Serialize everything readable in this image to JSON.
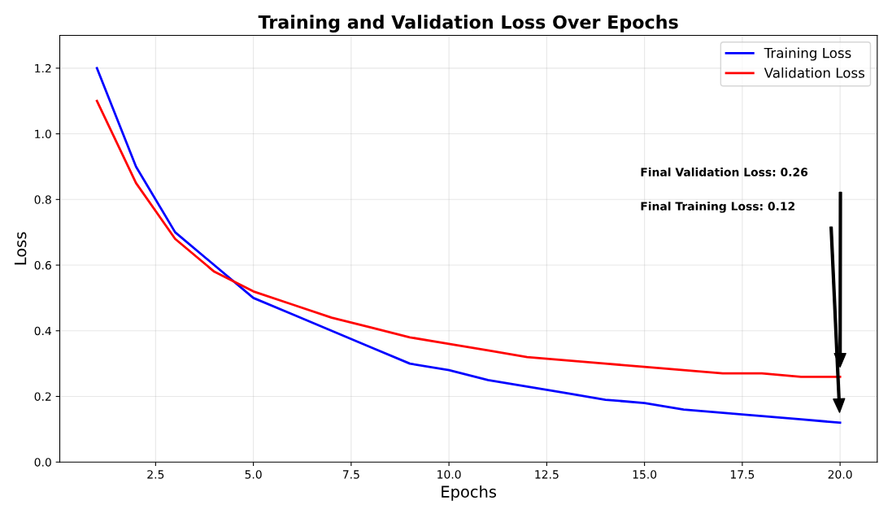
{
  "chart_data": {
    "type": "line",
    "title": "Training and Validation Loss Over Epochs",
    "xlabel": "Epochs",
    "ylabel": "Loss",
    "x": [
      1,
      2,
      3,
      4,
      5,
      6,
      7,
      8,
      9,
      10,
      11,
      12,
      13,
      14,
      15,
      16,
      17,
      18,
      19,
      20
    ],
    "series": [
      {
        "name": "Training Loss",
        "color": "#0000ff",
        "values": [
          1.2,
          0.9,
          0.7,
          0.6,
          0.5,
          0.45,
          0.4,
          0.35,
          0.3,
          0.28,
          0.25,
          0.23,
          0.21,
          0.19,
          0.18,
          0.16,
          0.15,
          0.14,
          0.13,
          0.12
        ]
      },
      {
        "name": "Validation Loss",
        "color": "#ff0000",
        "values": [
          1.1,
          0.85,
          0.68,
          0.58,
          0.52,
          0.48,
          0.44,
          0.41,
          0.38,
          0.36,
          0.34,
          0.32,
          0.31,
          0.3,
          0.29,
          0.28,
          0.27,
          0.27,
          0.26,
          0.26
        ]
      }
    ],
    "xlim": [
      0.05,
      20.95
    ],
    "xticks": [
      {
        "value": 2.5,
        "label": "2.5"
      },
      {
        "value": 5,
        "label": "5.0"
      },
      {
        "value": 7.5,
        "label": "7.5"
      },
      {
        "value": 10,
        "label": "10.0"
      },
      {
        "value": 12.5,
        "label": "12.5"
      },
      {
        "value": 15,
        "label": "15.0"
      },
      {
        "value": 17.5,
        "label": "17.5"
      },
      {
        "value": 20,
        "label": "20.0"
      }
    ],
    "ylim": [
      0,
      1.3
    ],
    "yticks": [
      {
        "value": 0,
        "label": "0.0"
      },
      {
        "value": 0.2,
        "label": "0.2"
      },
      {
        "value": 0.4,
        "label": "0.4"
      },
      {
        "value": 0.6,
        "label": "0.6"
      },
      {
        "value": 0.8,
        "label": "0.8"
      },
      {
        "value": 1.0,
        "label": "1.0"
      },
      {
        "value": 1.2,
        "label": "1.2"
      }
    ],
    "annotations": [
      "Final Validation Loss: 0.26",
      "Final Training Loss: 0.12"
    ],
    "grid": true,
    "legend": "top right",
    "marker": "none",
    "line_style": "solid"
  }
}
